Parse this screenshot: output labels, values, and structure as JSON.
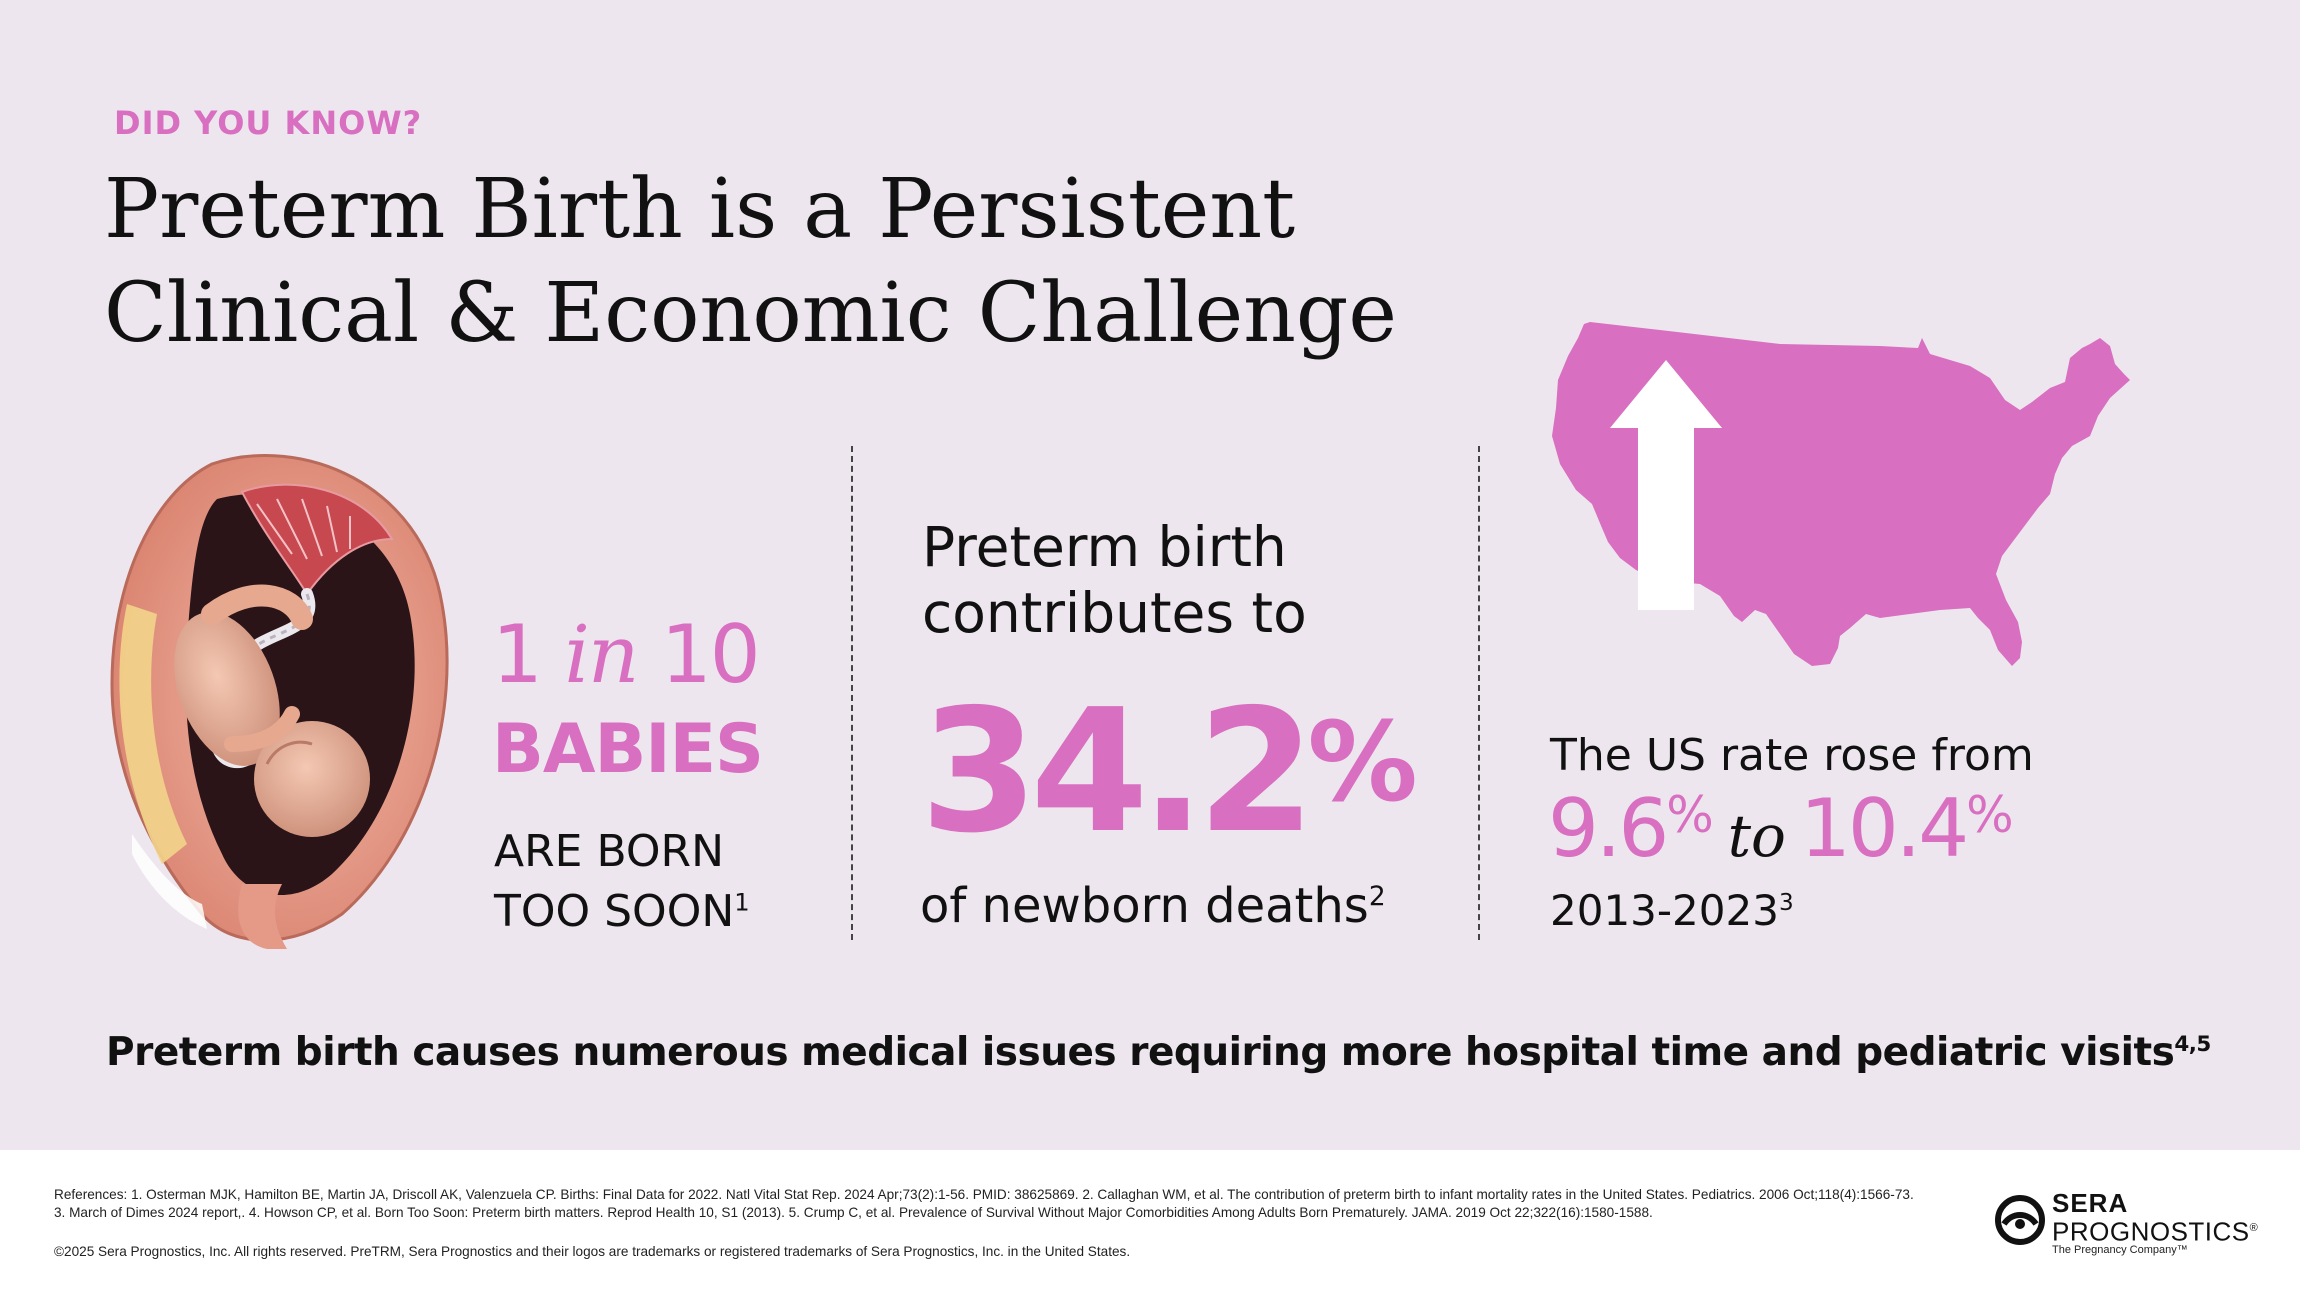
{
  "kicker": "DID YOU KNOW?",
  "headline": {
    "line1": "Preterm Birth is a Persistent",
    "line2": "Clinical & Economic Challenge"
  },
  "stat_babies": {
    "num1": "1",
    "word_in": "in",
    "num2": "10",
    "babies": "BABIES",
    "line1": "ARE BORN",
    "line2": "TOO SOON",
    "ref": "1"
  },
  "stat_deaths": {
    "lead1": "Preterm birth",
    "lead2": "contributes to",
    "value": "34.2",
    "pct": "%",
    "tail": "of newborn deaths",
    "ref": "2"
  },
  "stat_rate": {
    "lead": "The US rate rose from",
    "from": "9.6",
    "from_pct": "%",
    "to_word": "to",
    "to": "10.4",
    "to_pct": "%",
    "years": "2013-2023",
    "ref": "3"
  },
  "bottom": {
    "text": "Preterm birth causes numerous medical issues requiring more hospital time and pediatric visits",
    "ref": "4,5"
  },
  "footer": {
    "references": "References: 1. Osterman MJK, Hamilton BE, Martin JA, Driscoll AK, Valenzuela CP. Births: Final Data for 2022. Natl Vital Stat Rep. 2024 Apr;73(2):1-56. PMID: 38625869. 2. Callaghan WM, et al. The contribution of preterm birth to infant mortality rates in the United States. Pediatrics. 2006 Oct;118(4):1566-73. 3. March of Dimes 2024 report,. 4. Howson CP, et al. Born Too Soon: Preterm birth matters. Reprod Health 10, S1 (2013). 5. Crump C, et al. Prevalence of Survival Without Major Comorbidities Among Adults Born Prematurely. JAMA. 2019 Oct 22;322(16):1580-1588.",
    "copyright": "©2025 Sera Prognostics, Inc. All rights reserved. PreTRM, Sera Prognostics and their logos are trademarks or registered trademarks of Sera Prognostics, Inc. in the United States."
  },
  "logo": {
    "name1": "SERA",
    "name2": "PROGNOSTICS",
    "reg": "®",
    "tagline": "The Pregnancy Company™"
  },
  "colors": {
    "accent": "#d86fc0",
    "background": "#ede6ee",
    "text": "#111111"
  },
  "icons": [
    "fetus-in-womb-illustration",
    "us-map-icon",
    "up-arrow-icon",
    "sera-logo-mark"
  ]
}
